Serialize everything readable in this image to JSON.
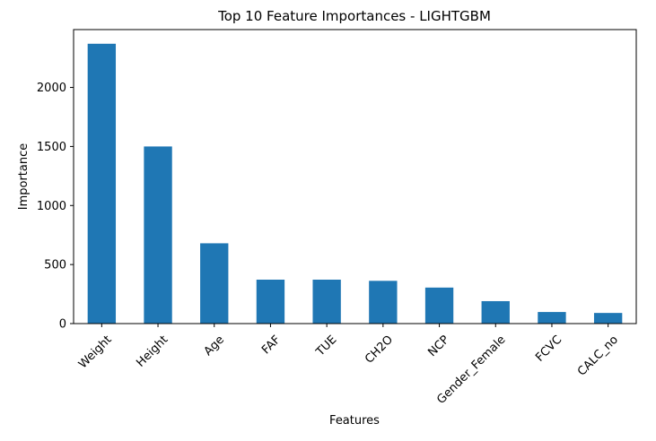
{
  "chart_data": {
    "type": "bar",
    "title": "Top 10 Feature Importances - LIGHTGBM",
    "xlabel": "Features",
    "ylabel": "Importance",
    "categories": [
      "Weight",
      "Height",
      "Age",
      "FAF",
      "TUE",
      "CH2O",
      "NCP",
      "Gender_Female",
      "FCVC",
      "CALC_no"
    ],
    "values": [
      2370,
      1500,
      680,
      372,
      372,
      362,
      305,
      190,
      98,
      90
    ],
    "ylim": [
      0,
      2490
    ],
    "yticks": [
      0,
      500,
      1000,
      1500,
      2000
    ],
    "ytick_labels": [
      "0",
      "500",
      "1000",
      "1500",
      "2000"
    ],
    "bar_color": "#1f77b4",
    "grid": false,
    "legend": "none"
  }
}
